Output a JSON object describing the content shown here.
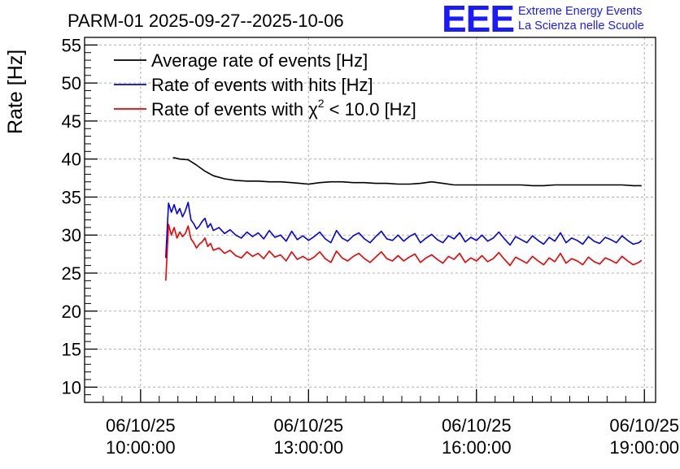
{
  "header": {
    "title": "PARM-01 2025-09-27--2025-10-06",
    "logo_mark": "EEE",
    "logo_line1": "Extreme Energy Events",
    "logo_line2": "La Scienza nelle Scuole"
  },
  "colors": {
    "black": "#000000",
    "blue": "#0000ee",
    "red": "#ee0000",
    "grid": "#b0b0b0",
    "logo": "#1a1aff"
  },
  "chart_data": {
    "type": "line",
    "ylabel": "Rate [Hz]",
    "xlabel": "",
    "ylim": [
      8,
      56
    ],
    "xlim": [
      9.0,
      19.2
    ],
    "yticks": [
      10,
      15,
      20,
      25,
      30,
      35,
      40,
      45,
      50,
      55
    ],
    "grid": true,
    "legend_position": "top-left",
    "xticks": [
      {
        "x": 10,
        "date": "06/10/25",
        "time": "10:00:00"
      },
      {
        "x": 13,
        "date": "06/10/25",
        "time": "13:00:00"
      },
      {
        "x": 16,
        "date": "06/10/25",
        "time": "16:00:00"
      },
      {
        "x": 19,
        "date": "06/10/25",
        "time": "19:00:00"
      }
    ],
    "series": [
      {
        "name": "Average rate of events [Hz]",
        "color": "#000000",
        "x": [
          10.58,
          10.7,
          10.85,
          11.0,
          11.15,
          11.3,
          11.5,
          11.7,
          11.9,
          12.1,
          12.3,
          12.5,
          12.7,
          12.85,
          13.0,
          13.2,
          13.4,
          13.6,
          13.8,
          14.0,
          14.2,
          14.4,
          14.6,
          14.8,
          15.0,
          15.2,
          15.4,
          15.6,
          15.8,
          16.0,
          16.2,
          16.4,
          16.6,
          16.8,
          17.0,
          17.2,
          17.4,
          17.6,
          17.8,
          18.0,
          18.2,
          18.4,
          18.6,
          18.8,
          18.95
        ],
        "values": [
          40.2,
          40.0,
          39.9,
          39.2,
          38.4,
          37.8,
          37.4,
          37.2,
          37.1,
          37.1,
          37.0,
          37.0,
          36.9,
          36.8,
          36.7,
          36.9,
          37.0,
          37.0,
          36.9,
          36.9,
          36.8,
          36.8,
          36.7,
          36.7,
          36.8,
          37.0,
          36.8,
          36.6,
          36.6,
          36.6,
          36.6,
          36.6,
          36.6,
          36.6,
          36.5,
          36.5,
          36.6,
          36.6,
          36.6,
          36.6,
          36.6,
          36.6,
          36.6,
          36.5,
          36.5
        ]
      },
      {
        "name": "Rate of events with hits [Hz]",
        "color": "#0000ee",
        "x": [
          10.45,
          10.5,
          10.55,
          10.6,
          10.65,
          10.7,
          10.75,
          10.8,
          10.85,
          10.9,
          10.95,
          11.0,
          11.05,
          11.1,
          11.15,
          11.2,
          11.25,
          11.3,
          11.4,
          11.5,
          11.6,
          11.7,
          11.8,
          11.9,
          12.0,
          12.1,
          12.2,
          12.3,
          12.4,
          12.5,
          12.6,
          12.7,
          12.8,
          12.9,
          13.0,
          13.1,
          13.2,
          13.3,
          13.4,
          13.5,
          13.6,
          13.7,
          13.8,
          13.9,
          14.0,
          14.1,
          14.2,
          14.3,
          14.4,
          14.5,
          14.6,
          14.7,
          14.8,
          14.9,
          15.0,
          15.1,
          15.2,
          15.3,
          15.4,
          15.5,
          15.6,
          15.7,
          15.8,
          15.9,
          16.0,
          16.1,
          16.2,
          16.3,
          16.4,
          16.5,
          16.6,
          16.7,
          16.8,
          16.9,
          17.0,
          17.1,
          17.2,
          17.3,
          17.4,
          17.5,
          17.6,
          17.7,
          17.8,
          17.9,
          18.0,
          18.1,
          18.2,
          18.3,
          18.4,
          18.5,
          18.6,
          18.7,
          18.8,
          18.9,
          18.95
        ],
        "values": [
          27.0,
          34.2,
          33.0,
          34.0,
          32.8,
          33.5,
          32.4,
          33.2,
          34.3,
          32.0,
          31.5,
          30.8,
          31.2,
          31.8,
          32.2,
          31.0,
          31.5,
          30.6,
          31.0,
          30.2,
          30.7,
          30.0,
          29.6,
          30.4,
          29.8,
          30.3,
          29.5,
          30.6,
          29.7,
          30.0,
          29.2,
          30.5,
          29.4,
          29.9,
          29.3,
          29.8,
          30.4,
          29.5,
          29.0,
          30.6,
          29.6,
          29.2,
          29.9,
          30.3,
          29.5,
          29.0,
          29.8,
          30.5,
          29.5,
          29.3,
          30.0,
          29.2,
          29.8,
          30.2,
          29.0,
          29.6,
          30.1,
          29.4,
          29.0,
          29.9,
          29.5,
          30.3,
          29.1,
          29.7,
          29.3,
          30.0,
          29.2,
          29.6,
          30.4,
          29.5,
          28.7,
          29.8,
          29.4,
          29.0,
          29.9,
          29.3,
          28.8,
          29.7,
          29.2,
          30.3,
          29.0,
          29.6,
          29.3,
          28.8,
          29.8,
          29.2,
          28.9,
          29.7,
          29.4,
          29.0,
          29.9,
          29.3,
          28.8,
          29.0,
          29.3
        ]
      },
      {
        "name": "Rate of events with χ² < 10.0 [Hz]",
        "label_main": "Rate of events with χ",
        "label_sup": "2",
        "label_tail": " < 10.0 [Hz]",
        "color": "#ee0000",
        "x": [
          10.45,
          10.5,
          10.55,
          10.6,
          10.65,
          10.7,
          10.75,
          10.8,
          10.85,
          10.9,
          10.95,
          11.0,
          11.05,
          11.1,
          11.15,
          11.2,
          11.25,
          11.3,
          11.4,
          11.5,
          11.6,
          11.7,
          11.8,
          11.9,
          12.0,
          12.1,
          12.2,
          12.3,
          12.4,
          12.5,
          12.6,
          12.7,
          12.8,
          12.9,
          13.0,
          13.1,
          13.2,
          13.3,
          13.4,
          13.5,
          13.6,
          13.7,
          13.8,
          13.9,
          14.0,
          14.1,
          14.2,
          14.3,
          14.4,
          14.5,
          14.6,
          14.7,
          14.8,
          14.9,
          15.0,
          15.1,
          15.2,
          15.3,
          15.4,
          15.5,
          15.6,
          15.7,
          15.8,
          15.9,
          16.0,
          16.1,
          16.2,
          16.3,
          16.4,
          16.5,
          16.6,
          16.7,
          16.8,
          16.9,
          17.0,
          17.1,
          17.2,
          17.3,
          17.4,
          17.5,
          17.6,
          17.7,
          17.8,
          17.9,
          18.0,
          18.1,
          18.2,
          18.3,
          18.4,
          18.5,
          18.6,
          18.7,
          18.8,
          18.9,
          18.95
        ],
        "values": [
          24.0,
          31.4,
          30.0,
          31.0,
          29.6,
          30.4,
          29.8,
          30.2,
          31.2,
          29.5,
          29.0,
          28.3,
          28.8,
          29.1,
          29.6,
          28.5,
          28.9,
          28.0,
          28.3,
          27.6,
          28.0,
          27.3,
          27.0,
          27.8,
          27.2,
          27.6,
          26.9,
          27.9,
          27.1,
          27.4,
          26.6,
          27.8,
          26.8,
          27.2,
          26.7,
          27.1,
          27.8,
          26.9,
          26.4,
          27.9,
          27.0,
          26.6,
          27.2,
          27.6,
          26.9,
          26.4,
          27.1,
          27.8,
          26.9,
          26.6,
          27.3,
          26.6,
          27.1,
          27.5,
          26.4,
          27.0,
          27.4,
          26.8,
          26.3,
          27.2,
          26.8,
          27.6,
          26.4,
          27.0,
          26.6,
          27.3,
          26.5,
          26.9,
          27.7,
          26.8,
          26.0,
          27.1,
          26.7,
          26.3,
          27.2,
          26.6,
          26.1,
          27.0,
          26.5,
          27.6,
          26.3,
          26.9,
          26.6,
          26.1,
          27.1,
          26.5,
          26.2,
          27.0,
          26.7,
          26.3,
          27.2,
          26.6,
          26.1,
          26.4,
          26.7
        ]
      }
    ]
  }
}
